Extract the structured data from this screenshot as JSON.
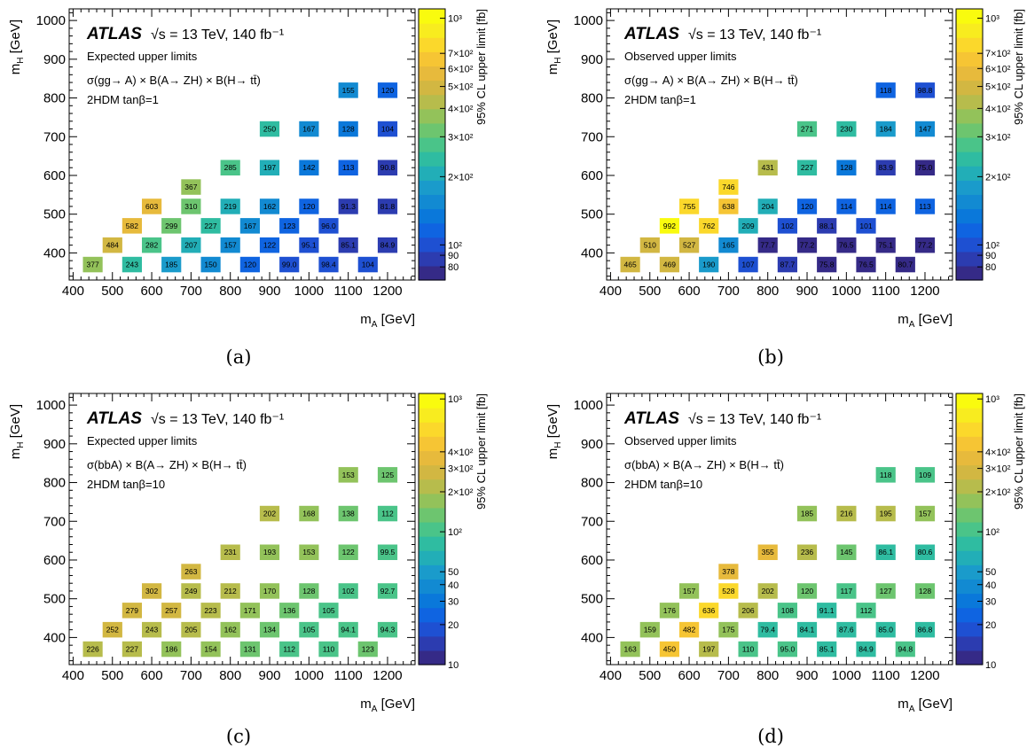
{
  "colors": {
    "palette": [
      "#352A87",
      "#2C3CB0",
      "#1E50D2",
      "#0F64E1",
      "#0A78DA",
      "#128AD2",
      "#1A9BCB",
      "#22AEB7",
      "#2FBCA1",
      "#4AC489",
      "#6DC56F",
      "#93C25A",
      "#B7BC4C",
      "#D2B742",
      "#E7BA3C",
      "#F6C534",
      "#FBD82B",
      "#F8EC1F",
      "#F9FB0E"
    ]
  },
  "panels": [
    {
      "caption": "(a)",
      "atlas": "ATLAS",
      "energy": "√s = 13 TeV, 140 fb⁻¹",
      "limit_type": "Expected upper limits",
      "process": "σ(gg→ A) × B(A→ ZH) × B(H→ tt̄)",
      "model": "2HDM tanβ=1",
      "xlabel": "m_A [GeV]",
      "ylabel": "m_H [GeV]",
      "zlabel": "95% CL upper limit [fb]",
      "zrange": [
        70,
        1100
      ],
      "zticks": [
        {
          "v": 1000,
          "t": "10³"
        },
        {
          "v": 700,
          "t": "7×10²"
        },
        {
          "v": 600,
          "t": "6×10²"
        },
        {
          "v": 500,
          "t": "5×10²"
        },
        {
          "v": 400,
          "t": "4×10²"
        },
        {
          "v": 300,
          "t": "3×10²"
        },
        {
          "v": 200,
          "t": "2×10²"
        },
        {
          "v": 100,
          "t": "10²"
        },
        {
          "v": 90,
          "t": "90"
        },
        {
          "v": 80,
          "t": "80"
        }
      ]
    },
    {
      "caption": "(b)",
      "atlas": "ATLAS",
      "energy": "√s = 13 TeV, 140 fb⁻¹",
      "limit_type": "Observed upper limits",
      "process": "σ(gg→ A) × B(A→ ZH) × B(H→ tt̄)",
      "model": "2HDM tanβ=1",
      "xlabel": "m_A [GeV]",
      "ylabel": "m_H [GeV]",
      "zlabel": "95% CL upper limit [fb]",
      "zrange": [
        70,
        1100
      ],
      "zticks": [
        {
          "v": 1000,
          "t": "10³"
        },
        {
          "v": 700,
          "t": "7×10²"
        },
        {
          "v": 600,
          "t": "6×10²"
        },
        {
          "v": 500,
          "t": "5×10²"
        },
        {
          "v": 400,
          "t": "4×10²"
        },
        {
          "v": 300,
          "t": "3×10²"
        },
        {
          "v": 200,
          "t": "2×10²"
        },
        {
          "v": 100,
          "t": "10²"
        },
        {
          "v": 90,
          "t": "90"
        },
        {
          "v": 80,
          "t": "80"
        }
      ]
    },
    {
      "caption": "(c)",
      "atlas": "ATLAS",
      "energy": "√s = 13 TeV, 140 fb⁻¹",
      "limit_type": "Expected upper limits",
      "process": "σ(bbA) × B(A→ ZH) × B(H→ tt̄)",
      "model": "2HDM tanβ=10",
      "xlabel": "m_A [GeV]",
      "ylabel": "m_H [GeV]",
      "zlabel": "95% CL upper limit [fb]",
      "zrange": [
        10,
        1100
      ],
      "zticks": [
        {
          "v": 1000,
          "t": "10³"
        },
        {
          "v": 400,
          "t": "4×10²"
        },
        {
          "v": 300,
          "t": "3×10²"
        },
        {
          "v": 200,
          "t": "2×10²"
        },
        {
          "v": 100,
          "t": "10²"
        },
        {
          "v": 50,
          "t": "50"
        },
        {
          "v": 40,
          "t": "40"
        },
        {
          "v": 30,
          "t": "30"
        },
        {
          "v": 20,
          "t": "20"
        },
        {
          "v": 10,
          "t": "10"
        }
      ]
    },
    {
      "caption": "(d)",
      "atlas": "ATLAS",
      "energy": "√s = 13 TeV, 140 fb⁻¹",
      "limit_type": "Observed upper limits",
      "process": "σ(bbA) × B(A→ ZH) × B(H→ tt̄)",
      "model": "2HDM tanβ=10",
      "xlabel": "m_A [GeV]",
      "ylabel": "m_H [GeV]",
      "zlabel": "95% CL upper limit [fb]",
      "zrange": [
        10,
        1100
      ],
      "zticks": [
        {
          "v": 1000,
          "t": "10³"
        },
        {
          "v": 400,
          "t": "4×10²"
        },
        {
          "v": 300,
          "t": "3×10²"
        },
        {
          "v": 200,
          "t": "2×10²"
        },
        {
          "v": 100,
          "t": "10²"
        },
        {
          "v": 50,
          "t": "50"
        },
        {
          "v": 40,
          "t": "40"
        },
        {
          "v": 30,
          "t": "30"
        },
        {
          "v": 20,
          "t": "20"
        },
        {
          "v": 10,
          "t": "10"
        }
      ]
    }
  ],
  "chart_data": [
    {
      "type": "heatmap",
      "xlim": [
        390,
        1270
      ],
      "ylim": [
        330,
        1030
      ],
      "xticks": [
        400,
        500,
        600,
        700,
        800,
        900,
        1000,
        1100,
        1200
      ],
      "yticks": [
        400,
        500,
        600,
        700,
        800,
        900,
        1000
      ],
      "cells": [
        [
          450,
          370,
          "377"
        ],
        [
          500,
          420,
          "484"
        ],
        [
          550,
          470,
          "582"
        ],
        [
          600,
          520,
          "603"
        ],
        [
          550,
          370,
          "243"
        ],
        [
          600,
          420,
          "282"
        ],
        [
          650,
          470,
          "299"
        ],
        [
          700,
          520,
          "310"
        ],
        [
          700,
          570,
          "367"
        ],
        [
          650,
          370,
          "185"
        ],
        [
          700,
          420,
          "207"
        ],
        [
          750,
          470,
          "227"
        ],
        [
          800,
          520,
          "219"
        ],
        [
          800,
          620,
          "285"
        ],
        [
          750,
          370,
          "150"
        ],
        [
          800,
          420,
          "157"
        ],
        [
          850,
          470,
          "167"
        ],
        [
          900,
          520,
          "162"
        ],
        [
          900,
          620,
          "197"
        ],
        [
          900,
          720,
          "250"
        ],
        [
          850,
          370,
          "120"
        ],
        [
          900,
          420,
          "122"
        ],
        [
          950,
          470,
          "123"
        ],
        [
          1000,
          520,
          "120"
        ],
        [
          1000,
          620,
          "142"
        ],
        [
          1000,
          720,
          "167"
        ],
        [
          950,
          370,
          "99.0"
        ],
        [
          1000,
          420,
          "95.1"
        ],
        [
          1050,
          470,
          "96.0"
        ],
        [
          1100,
          520,
          "91.3"
        ],
        [
          1100,
          620,
          "113"
        ],
        [
          1100,
          720,
          "128"
        ],
        [
          1100,
          820,
          "155"
        ],
        [
          1050,
          370,
          "98.4"
        ],
        [
          1100,
          420,
          "85.1"
        ],
        [
          1200,
          420,
          "84.9"
        ],
        [
          1200,
          520,
          "81.8"
        ],
        [
          1200,
          620,
          "90.8"
        ],
        [
          1200,
          720,
          "104"
        ],
        [
          1200,
          820,
          "120"
        ],
        [
          1150,
          370,
          "104"
        ]
      ]
    },
    {
      "type": "heatmap",
      "xlim": [
        390,
        1270
      ],
      "ylim": [
        330,
        1030
      ],
      "xticks": [
        400,
        500,
        600,
        700,
        800,
        900,
        1000,
        1100,
        1200
      ],
      "yticks": [
        400,
        500,
        600,
        700,
        800,
        900,
        1000
      ],
      "cells": [
        [
          450,
          370,
          "465"
        ],
        [
          500,
          420,
          "510"
        ],
        [
          550,
          470,
          "992"
        ],
        [
          600,
          520,
          "755"
        ],
        [
          550,
          370,
          "469"
        ],
        [
          600,
          420,
          "527"
        ],
        [
          650,
          470,
          "762"
        ],
        [
          700,
          520,
          "638"
        ],
        [
          700,
          570,
          "746"
        ],
        [
          650,
          370,
          "190"
        ],
        [
          700,
          420,
          "165"
        ],
        [
          750,
          470,
          "209"
        ],
        [
          800,
          520,
          "204"
        ],
        [
          800,
          620,
          "431"
        ],
        [
          750,
          370,
          "107"
        ],
        [
          800,
          420,
          "77.7"
        ],
        [
          850,
          470,
          "102"
        ],
        [
          900,
          520,
          "120"
        ],
        [
          900,
          620,
          "227"
        ],
        [
          900,
          720,
          "271"
        ],
        [
          850,
          370,
          "87.7"
        ],
        [
          900,
          420,
          "77.2"
        ],
        [
          950,
          470,
          "88.1"
        ],
        [
          1000,
          520,
          "114"
        ],
        [
          1000,
          620,
          "128"
        ],
        [
          1000,
          720,
          "230"
        ],
        [
          950,
          370,
          "75.8"
        ],
        [
          1000,
          420,
          "76.5"
        ],
        [
          1050,
          470,
          "101"
        ],
        [
          1100,
          520,
          "114"
        ],
        [
          1100,
          620,
          "83.9"
        ],
        [
          1100,
          720,
          "184"
        ],
        [
          1100,
          820,
          "118"
        ],
        [
          1050,
          370,
          "76.5"
        ],
        [
          1100,
          420,
          "75.1"
        ],
        [
          1200,
          420,
          "77.2"
        ],
        [
          1200,
          520,
          "113"
        ],
        [
          1200,
          620,
          "75.0"
        ],
        [
          1200,
          720,
          "147"
        ],
        [
          1200,
          820,
          "98.8"
        ],
        [
          1150,
          370,
          "80.7"
        ]
      ]
    },
    {
      "type": "heatmap",
      "xlim": [
        390,
        1270
      ],
      "ylim": [
        330,
        1030
      ],
      "xticks": [
        400,
        500,
        600,
        700,
        800,
        900,
        1000,
        1100,
        1200
      ],
      "yticks": [
        400,
        500,
        600,
        700,
        800,
        900,
        1000
      ],
      "cells": [
        [
          450,
          370,
          "226"
        ],
        [
          500,
          420,
          "252"
        ],
        [
          550,
          470,
          "279"
        ],
        [
          600,
          520,
          "302"
        ],
        [
          550,
          370,
          "227"
        ],
        [
          600,
          420,
          "243"
        ],
        [
          650,
          470,
          "257"
        ],
        [
          700,
          520,
          "249"
        ],
        [
          700,
          570,
          "263"
        ],
        [
          650,
          370,
          "186"
        ],
        [
          700,
          420,
          "205"
        ],
        [
          750,
          470,
          "223"
        ],
        [
          800,
          520,
          "212"
        ],
        [
          800,
          620,
          "231"
        ],
        [
          750,
          370,
          "154"
        ],
        [
          800,
          420,
          "162"
        ],
        [
          850,
          470,
          "171"
        ],
        [
          900,
          520,
          "170"
        ],
        [
          900,
          620,
          "193"
        ],
        [
          900,
          720,
          "202"
        ],
        [
          850,
          370,
          "131"
        ],
        [
          900,
          420,
          "134"
        ],
        [
          950,
          470,
          "136"
        ],
        [
          1000,
          520,
          "128"
        ],
        [
          1000,
          620,
          "153"
        ],
        [
          1000,
          720,
          "168"
        ],
        [
          950,
          370,
          "112"
        ],
        [
          1000,
          420,
          "105"
        ],
        [
          1050,
          470,
          "105"
        ],
        [
          1100,
          520,
          "102"
        ],
        [
          1100,
          620,
          "122"
        ],
        [
          1100,
          720,
          "138"
        ],
        [
          1100,
          820,
          "153"
        ],
        [
          1050,
          370,
          "110"
        ],
        [
          1100,
          420,
          "94.1"
        ],
        [
          1200,
          420,
          "94.3"
        ],
        [
          1200,
          520,
          "92.7"
        ],
        [
          1200,
          620,
          "99.5"
        ],
        [
          1200,
          720,
          "112"
        ],
        [
          1200,
          820,
          "125"
        ],
        [
          1150,
          370,
          "123"
        ]
      ]
    },
    {
      "type": "heatmap",
      "xlim": [
        390,
        1270
      ],
      "ylim": [
        330,
        1030
      ],
      "xticks": [
        400,
        500,
        600,
        700,
        800,
        900,
        1000,
        1100,
        1200
      ],
      "yticks": [
        400,
        500,
        600,
        700,
        800,
        900,
        1000
      ],
      "cells": [
        [
          450,
          370,
          "163"
        ],
        [
          500,
          420,
          "159"
        ],
        [
          550,
          470,
          "176"
        ],
        [
          600,
          520,
          "157"
        ],
        [
          550,
          370,
          "450"
        ],
        [
          600,
          420,
          "482"
        ],
        [
          650,
          470,
          "636"
        ],
        [
          700,
          520,
          "528"
        ],
        [
          700,
          570,
          "378"
        ],
        [
          650,
          370,
          "197"
        ],
        [
          700,
          420,
          "175"
        ],
        [
          750,
          470,
          "206"
        ],
        [
          800,
          520,
          "202"
        ],
        [
          800,
          620,
          "355"
        ],
        [
          750,
          370,
          "110"
        ],
        [
          800,
          420,
          "79.4"
        ],
        [
          850,
          470,
          "108"
        ],
        [
          900,
          520,
          "120"
        ],
        [
          900,
          620,
          "236"
        ],
        [
          900,
          720,
          "185"
        ],
        [
          850,
          370,
          "95.0"
        ],
        [
          900,
          420,
          "84.1"
        ],
        [
          950,
          470,
          "91.1"
        ],
        [
          1000,
          520,
          "117"
        ],
        [
          1000,
          620,
          "145"
        ],
        [
          1000,
          720,
          "216"
        ],
        [
          950,
          370,
          "85.1"
        ],
        [
          1000,
          420,
          "87.6"
        ],
        [
          1050,
          470,
          "112"
        ],
        [
          1100,
          520,
          "127"
        ],
        [
          1100,
          620,
          "86.1"
        ],
        [
          1100,
          720,
          "195"
        ],
        [
          1100,
          820,
          "118"
        ],
        [
          1050,
          370,
          "84.9"
        ],
        [
          1100,
          420,
          "85.0"
        ],
        [
          1200,
          420,
          "86.8"
        ],
        [
          1200,
          520,
          "128"
        ],
        [
          1200,
          620,
          "80.6"
        ],
        [
          1200,
          720,
          "157"
        ],
        [
          1200,
          820,
          "109"
        ],
        [
          1150,
          370,
          "94.8"
        ]
      ]
    }
  ]
}
